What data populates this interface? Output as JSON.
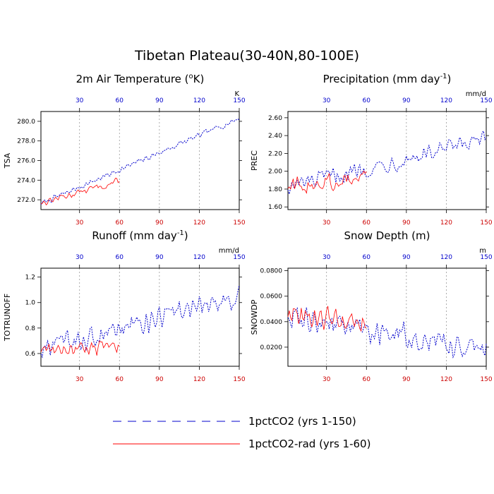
{
  "figure": {
    "title": "Tibetan Plateau(30-40N,80-100E)"
  },
  "colors": {
    "series_1pctCO2": "#0000cc",
    "series_1pctCO2_rad": "#ff0000",
    "top_ticks": "#0000cc",
    "bottom_ticks": "#cc0000"
  },
  "legend": {
    "items": [
      {
        "label": "1pctCO2 (yrs 1-150)",
        "color": "#0000cc",
        "style": "dashed"
      },
      {
        "label": "1pctCO2-rad (yrs 1-60)",
        "color": "#ff0000",
        "style": "solid"
      }
    ]
  },
  "chart_data": [
    {
      "type": "line",
      "title": "2m Air Temperature (°K)",
      "ylabel": "TSA",
      "unit_label": "K",
      "xlim": [
        1,
        150
      ],
      "ylim": [
        271.0,
        281.0
      ],
      "x_ticks": [
        30,
        60,
        90,
        120,
        150
      ],
      "y_ticks": [
        272.0,
        274.0,
        276.0,
        278.0,
        280.0
      ],
      "y_tick_labels": [
        "272.0",
        "274.0",
        "276.0",
        "278.0",
        "280.0"
      ],
      "gridlines_x": [
        30,
        60,
        90,
        120
      ],
      "series": [
        {
          "name": "1pctCO2 (yrs 1-150)",
          "years": [
            1,
            150
          ],
          "start": 271.6,
          "end": 280.3,
          "variability": 0.35
        },
        {
          "name": "1pctCO2-rad (yrs 1-60)",
          "years": [
            1,
            60
          ],
          "start": 271.7,
          "end": 273.9,
          "variability": 0.45
        }
      ]
    },
    {
      "type": "line",
      "title": "Precipitation (mm day-1)",
      "ylabel": "PREC",
      "unit_label": "mm/d",
      "xlim": [
        1,
        150
      ],
      "ylim": [
        1.57,
        2.67
      ],
      "x_ticks": [
        30,
        60,
        90,
        120,
        150
      ],
      "y_ticks": [
        1.6,
        1.8,
        2.0,
        2.2,
        2.4,
        2.6
      ],
      "y_tick_labels": [
        "1.60",
        "1.80",
        "2.00",
        "2.20",
        "2.40",
        "2.60"
      ],
      "gridlines_x": [
        30,
        60,
        90,
        120
      ],
      "series": [
        {
          "name": "1pctCO2 (yrs 1-150)",
          "years": [
            1,
            150
          ],
          "start": 1.82,
          "end": 2.35,
          "variability": 0.12
        },
        {
          "name": "1pctCO2-rad (yrs 1-60)",
          "years": [
            1,
            60
          ],
          "start": 1.83,
          "end": 1.93,
          "variability": 0.13
        }
      ]
    },
    {
      "type": "line",
      "title": "Runoff (mm day-1)",
      "ylabel": "TOTRUNOFF",
      "unit_label": "mm/d",
      "xlim": [
        1,
        150
      ],
      "ylim": [
        0.5,
        1.27
      ],
      "x_ticks": [
        30,
        60,
        90,
        120,
        150
      ],
      "y_ticks": [
        0.6,
        0.8,
        1.0,
        1.2
      ],
      "y_tick_labels": [
        "0.6",
        "0.8",
        "1.0",
        "1.2"
      ],
      "gridlines_x": [
        30,
        60,
        90,
        120
      ],
      "series": [
        {
          "name": "1pctCO2 (yrs 1-150)",
          "years": [
            1,
            150
          ],
          "start": 0.62,
          "end": 1.05,
          "variability": 0.11
        },
        {
          "name": "1pctCO2-rad (yrs 1-60)",
          "years": [
            1,
            60
          ],
          "start": 0.62,
          "end": 0.66,
          "variability": 0.07
        }
      ]
    },
    {
      "type": "line",
      "title": "Snow Depth (m)",
      "ylabel": "SNOWDP",
      "unit_label": "m",
      "xlim": [
        1,
        150
      ],
      "ylim": [
        0.005,
        0.082
      ],
      "x_ticks": [
        30,
        60,
        90,
        120,
        150
      ],
      "y_ticks": [
        0.02,
        0.04,
        0.06,
        0.08
      ],
      "y_tick_labels": [
        "0.0200",
        "0.0400",
        "0.0600",
        "0.0800"
      ],
      "gridlines_x": [
        30,
        60,
        90,
        120
      ],
      "series": [
        {
          "name": "1pctCO2 (yrs 1-150)",
          "years": [
            1,
            150
          ],
          "start": 0.045,
          "end": 0.018,
          "variability": 0.012
        },
        {
          "name": "1pctCO2-rad (yrs 1-60)",
          "years": [
            1,
            60
          ],
          "start": 0.044,
          "end": 0.04,
          "variability": 0.012
        }
      ]
    }
  ]
}
